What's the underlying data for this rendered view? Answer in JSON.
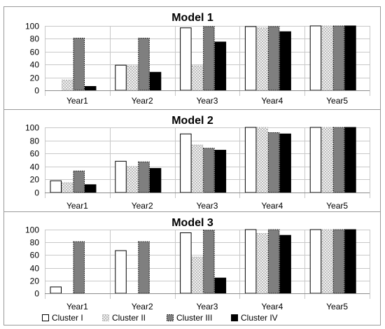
{
  "colors": {
    "cluster_1": "#ffffff",
    "cluster_2": "#d9d9d9",
    "cluster_3": "#7f7f7f",
    "cluster_4": "#000000",
    "grid": "#c8c8c8",
    "frame": "#9a9a9a"
  },
  "legend": {
    "placement": "bottom",
    "items": [
      {
        "label": "Cluster I",
        "pattern": "white"
      },
      {
        "label": "Cluster II",
        "pattern": "checker"
      },
      {
        "label": "Cluster III",
        "pattern": "gray-dotted"
      },
      {
        "label": "Cluster IV",
        "pattern": "black"
      }
    ]
  },
  "chart_data": [
    {
      "type": "bar",
      "title": "Model 1",
      "categories": [
        "Year1",
        "Year2",
        "Year3",
        "Year4",
        "Year5"
      ],
      "ylim": [
        0,
        100
      ],
      "yticks": [
        0,
        20,
        40,
        60,
        80,
        100
      ],
      "grid": true,
      "series": [
        {
          "name": "Cluster I",
          "values": [
            0,
            39,
            97,
            99,
            100
          ]
        },
        {
          "name": "Cluster II",
          "values": [
            16,
            38,
            38,
            97,
            100
          ]
        },
        {
          "name": "Cluster III",
          "values": [
            81,
            81,
            99,
            99,
            100
          ]
        },
        {
          "name": "Cluster IV",
          "values": [
            6,
            28,
            75,
            91,
            100
          ]
        }
      ]
    },
    {
      "type": "bar",
      "title": "Model 2",
      "categories": [
        "Year1",
        "Year2",
        "Year3",
        "Year4",
        "Year5"
      ],
      "ylim": [
        0,
        100
      ],
      "yticks": [
        0,
        20,
        40,
        60,
        80,
        100
      ],
      "grid": true,
      "series": [
        {
          "name": "Cluster I",
          "values": [
            18,
            48,
            90,
            100,
            100
          ]
        },
        {
          "name": "Cluster II",
          "values": [
            15,
            40,
            73,
            100,
            100
          ]
        },
        {
          "name": "Cluster III",
          "values": [
            33,
            47,
            68,
            92,
            100
          ]
        },
        {
          "name": "Cluster IV",
          "values": [
            12,
            37,
            65,
            90,
            100
          ]
        }
      ]
    },
    {
      "type": "bar",
      "title": "Model 3",
      "categories": [
        "Year1",
        "Year2",
        "Year3",
        "Year4",
        "Year5"
      ],
      "ylim": [
        0,
        100
      ],
      "yticks": [
        0,
        20,
        40,
        60,
        80,
        100
      ],
      "grid": true,
      "series": [
        {
          "name": "Cluster I",
          "values": [
            10,
            67,
            95,
            100,
            100
          ]
        },
        {
          "name": "Cluster II",
          "values": [
            0,
            0,
            57,
            94,
            100
          ]
        },
        {
          "name": "Cluster III",
          "values": [
            81,
            81,
            99,
            100,
            100
          ]
        },
        {
          "name": "Cluster IV",
          "values": [
            0,
            0,
            24,
            91,
            100
          ]
        }
      ]
    }
  ]
}
